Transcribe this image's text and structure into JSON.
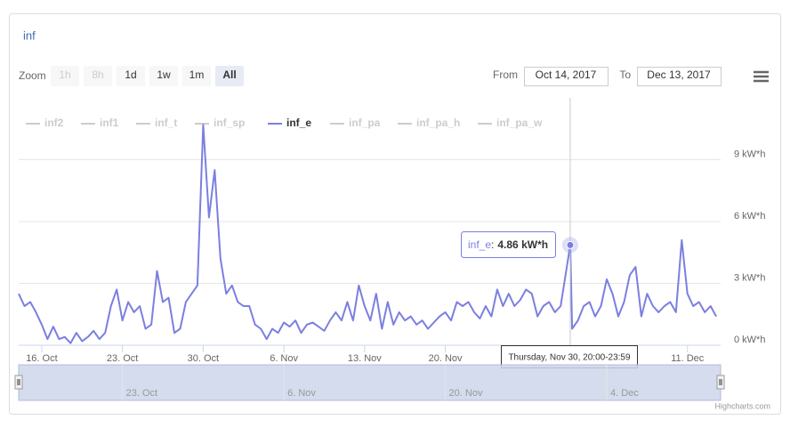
{
  "chart_data": {
    "type": "line",
    "title": "inf",
    "range_selector": {
      "zoom_label": "Zoom",
      "buttons": [
        {
          "label": "1h",
          "state": "disabled"
        },
        {
          "label": "8h",
          "state": "disabled"
        },
        {
          "label": "1d",
          "state": "normal"
        },
        {
          "label": "1w",
          "state": "normal"
        },
        {
          "label": "1m",
          "state": "normal"
        },
        {
          "label": "All",
          "state": "selected"
        }
      ],
      "from_label": "From",
      "from_value": "Oct 14, 2017",
      "to_label": "To",
      "to_value": "Dec 13, 2017"
    },
    "legend": [
      {
        "name": "inf2",
        "visible": false
      },
      {
        "name": "inf1",
        "visible": false
      },
      {
        "name": "inf_t",
        "visible": false
      },
      {
        "name": "inf_sp",
        "visible": false
      },
      {
        "name": "inf_e",
        "visible": true,
        "color": "#7b7fe0"
      },
      {
        "name": "inf_pa",
        "visible": false
      },
      {
        "name": "inf_pa_h",
        "visible": false
      },
      {
        "name": "inf_pa_w",
        "visible": false
      }
    ],
    "x": [
      "2017-10-14T00:00",
      "2017-10-14T12:00",
      "2017-10-15T00:00",
      "2017-10-15T12:00",
      "2017-10-16T00:00",
      "2017-10-16T12:00",
      "2017-10-17T00:00",
      "2017-10-17T12:00",
      "2017-10-18T00:00",
      "2017-10-18T12:00",
      "2017-10-19T00:00",
      "2017-10-19T12:00",
      "2017-10-20T00:00",
      "2017-10-20T12:00",
      "2017-10-21T00:00",
      "2017-10-21T12:00",
      "2017-10-22T00:00",
      "2017-10-22T12:00",
      "2017-10-23T00:00",
      "2017-10-23T12:00",
      "2017-10-24T00:00",
      "2017-10-24T12:00",
      "2017-10-25T00:00",
      "2017-10-25T12:00",
      "2017-10-26T00:00",
      "2017-10-26T12:00",
      "2017-10-27T00:00",
      "2017-10-27T12:00",
      "2017-10-28T00:00",
      "2017-10-28T12:00",
      "2017-10-29T00:00",
      "2017-10-29T12:00",
      "2017-10-30T00:00",
      "2017-10-30T12:00",
      "2017-10-31T00:00",
      "2017-10-31T12:00",
      "2017-11-01T00:00",
      "2017-11-01T12:00",
      "2017-11-02T00:00",
      "2017-11-02T12:00",
      "2017-11-03T00:00",
      "2017-11-03T12:00",
      "2017-11-04T00:00",
      "2017-11-04T12:00",
      "2017-11-05T00:00",
      "2017-11-05T12:00",
      "2017-11-06T00:00",
      "2017-11-06T12:00",
      "2017-11-07T00:00",
      "2017-11-07T12:00",
      "2017-11-08T00:00",
      "2017-11-08T12:00",
      "2017-11-09T00:00",
      "2017-11-09T12:00",
      "2017-11-10T00:00",
      "2017-11-10T12:00",
      "2017-11-11T00:00",
      "2017-11-11T12:00",
      "2017-11-12T00:00",
      "2017-11-12T12:00",
      "2017-11-13T00:00",
      "2017-11-13T12:00",
      "2017-11-14T00:00",
      "2017-11-14T12:00",
      "2017-11-15T00:00",
      "2017-11-15T12:00",
      "2017-11-16T00:00",
      "2017-11-16T12:00",
      "2017-11-17T00:00",
      "2017-11-17T12:00",
      "2017-11-18T00:00",
      "2017-11-18T12:00",
      "2017-11-19T00:00",
      "2017-11-19T12:00",
      "2017-11-20T00:00",
      "2017-11-20T12:00",
      "2017-11-21T00:00",
      "2017-11-21T12:00",
      "2017-11-22T00:00",
      "2017-11-22T12:00",
      "2017-11-23T00:00",
      "2017-11-23T12:00",
      "2017-11-24T00:00",
      "2017-11-24T12:00",
      "2017-11-25T00:00",
      "2017-11-25T12:00",
      "2017-11-26T00:00",
      "2017-11-26T12:00",
      "2017-11-27T00:00",
      "2017-11-27T12:00",
      "2017-11-28T00:00",
      "2017-11-28T12:00",
      "2017-11-29T00:00",
      "2017-11-29T12:00",
      "2017-11-30T00:00",
      "2017-11-30T20:00",
      "2017-12-01T00:00",
      "2017-12-01T12:00",
      "2017-12-02T00:00",
      "2017-12-02T12:00",
      "2017-12-03T00:00",
      "2017-12-03T12:00",
      "2017-12-04T00:00",
      "2017-12-04T12:00",
      "2017-12-05T00:00",
      "2017-12-05T12:00",
      "2017-12-06T00:00",
      "2017-12-06T12:00",
      "2017-12-07T00:00",
      "2017-12-07T12:00",
      "2017-12-08T00:00",
      "2017-12-08T12:00",
      "2017-12-09T00:00",
      "2017-12-09T12:00",
      "2017-12-10T00:00",
      "2017-12-10T12:00",
      "2017-12-11T00:00",
      "2017-12-11T12:00",
      "2017-12-12T00:00",
      "2017-12-12T12:00",
      "2017-12-13T00:00",
      "2017-12-13T12:00"
    ],
    "series": [
      {
        "name": "inf_e",
        "color": "#7b7fe0",
        "values": [
          2.5,
          1.9,
          2.1,
          1.6,
          1.0,
          0.3,
          0.9,
          0.3,
          0.4,
          0.1,
          0.6,
          0.2,
          0.4,
          0.7,
          0.3,
          0.6,
          1.9,
          2.7,
          1.2,
          2.1,
          1.6,
          1.9,
          0.8,
          1.0,
          3.6,
          2.1,
          2.3,
          0.6,
          0.8,
          2.1,
          2.5,
          2.9,
          10.7,
          6.2,
          8.5,
          4.2,
          2.5,
          2.9,
          2.1,
          1.9,
          1.9,
          1.0,
          0.8,
          0.3,
          0.8,
          0.6,
          1.1,
          0.9,
          1.2,
          0.6,
          1.0,
          1.1,
          0.9,
          0.7,
          1.2,
          1.6,
          1.2,
          2.1,
          1.2,
          2.9,
          1.9,
          1.2,
          2.5,
          0.8,
          2.1,
          1.0,
          1.6,
          1.2,
          1.4,
          1.0,
          1.2,
          0.8,
          1.1,
          1.4,
          1.6,
          1.2,
          2.1,
          1.9,
          2.1,
          1.6,
          1.3,
          1.9,
          1.4,
          2.7,
          1.9,
          2.5,
          1.9,
          2.2,
          2.7,
          2.5,
          1.4,
          1.9,
          2.1,
          1.6,
          1.9,
          4.86,
          0.8,
          1.2,
          1.9,
          2.1,
          1.4,
          1.9,
          3.2,
          2.5,
          1.4,
          2.1,
          3.4,
          3.8,
          1.4,
          2.5,
          1.9,
          1.6,
          1.9,
          2.1,
          1.6,
          5.1,
          2.5,
          1.9,
          2.1,
          1.6,
          1.9,
          1.4
        ]
      }
    ],
    "xlim": [
      "2017-10-14T00:00",
      "2017-12-13T21:00"
    ],
    "xticks": [
      {
        "value": "2017-10-16T00:00",
        "label": "16. Oct"
      },
      {
        "value": "2017-10-23T00:00",
        "label": "23. Oct"
      },
      {
        "value": "2017-10-30T00:00",
        "label": "30. Oct"
      },
      {
        "value": "2017-11-06T00:00",
        "label": "6. Nov"
      },
      {
        "value": "2017-11-13T00:00",
        "label": "13. Nov"
      },
      {
        "value": "2017-11-20T00:00",
        "label": "20. Nov"
      },
      {
        "value": "2017-12-11T00:00",
        "label": "11. Dec"
      }
    ],
    "ylim": [
      0,
      12
    ],
    "yticks": [
      {
        "value": 0,
        "label": "0 kW*h"
      },
      {
        "value": 3,
        "label": "3 kW*h"
      },
      {
        "value": 6,
        "label": "6 kW*h"
      },
      {
        "value": 9,
        "label": "9 kW*h"
      }
    ],
    "grid": true,
    "navigator_ticks": [
      {
        "value": "2017-10-23T00:00",
        "label": "23. Oct"
      },
      {
        "value": "2017-11-06T00:00",
        "label": "6. Nov"
      },
      {
        "value": "2017-11-20T00:00",
        "label": "20. Nov"
      },
      {
        "value": "2017-12-04T00:00",
        "label": "4. Dec"
      }
    ],
    "tooltip": {
      "point_index": 95,
      "series": "inf_e",
      "separator": ":",
      "value": 4.86,
      "value_label": "4.86 kW*h",
      "date_label": "Thursday, Nov 30, 20:00-23:59"
    },
    "credits": "Highcharts.com"
  }
}
